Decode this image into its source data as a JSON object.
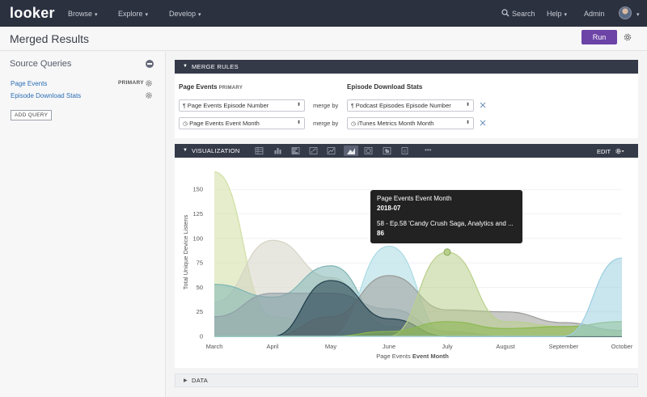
{
  "nav": {
    "logo": "looker",
    "items": [
      "Browse",
      "Explore",
      "Develop"
    ],
    "search": "Search",
    "help": "Help",
    "admin": "Admin"
  },
  "page": {
    "title": "Merged Results",
    "run_label": "Run"
  },
  "sidebar": {
    "title": "Source Queries",
    "queries": [
      {
        "label": "Page Events",
        "badge": "PRIMARY"
      },
      {
        "label": "Episode Download Stats",
        "badge": ""
      }
    ],
    "add_query": "ADD QUERY"
  },
  "merge_rules": {
    "header": "MERGE RULES",
    "left_title": "Page Events",
    "left_badge": "PRIMARY",
    "right_title": "Episode Download Stats",
    "merge_by": "merge by",
    "rows": [
      {
        "left": "Page Events Episode Number",
        "left_icon": "¶",
        "right": "Podcast Episodes Episode Number",
        "right_icon": "¶"
      },
      {
        "left": "Page Events Event Month",
        "left_icon": "◷",
        "right": "iTunes Metrics Month Month",
        "right_icon": "◷"
      }
    ]
  },
  "visualization": {
    "header": "VISUALIZATION",
    "edit": "EDIT",
    "more": "•••",
    "tools": [
      "table-icon",
      "column-chart-icon",
      "bar-chart-icon",
      "scatter-chart-icon",
      "line-chart-icon",
      "area-chart-icon",
      "pie-chart-icon",
      "map-icon",
      "single-value-icon"
    ]
  },
  "tooltip": {
    "title": "Page Events Event Month",
    "date": "2018-07",
    "series": "58 - Ep.58 'Candy Crush Saga, Analytics and ...",
    "value": "86"
  },
  "data_section": {
    "label": "DATA"
  },
  "chart_data": {
    "type": "area",
    "ylabel": "Total Unique Device Listens",
    "xlabel_prefix": "Page Events ",
    "xlabel_bold": "Event Month",
    "categories": [
      "March",
      "April",
      "May",
      "June",
      "July",
      "August",
      "September",
      "October"
    ],
    "ylim": [
      0,
      170
    ],
    "yticks": [
      0,
      25,
      50,
      75,
      100,
      125,
      150
    ],
    "series": [
      {
        "color": "#cfdfa3",
        "values": [
          168,
          20,
          5,
          0,
          0,
          0,
          0,
          0
        ]
      },
      {
        "color": "#d6d3c4",
        "values": [
          35,
          98,
          60,
          0,
          0,
          0,
          0,
          0
        ]
      },
      {
        "color": "#7fb6b5",
        "values": [
          53,
          40,
          72,
          10,
          0,
          0,
          0,
          0
        ]
      },
      {
        "color": "#8fa0a8",
        "values": [
          20,
          44,
          44,
          28,
          5,
          0,
          0,
          0
        ]
      },
      {
        "color": "#a9dbe3",
        "values": [
          0,
          0,
          0,
          92,
          0,
          0,
          0,
          0
        ]
      },
      {
        "color": "#9a9c98",
        "values": [
          0,
          0,
          20,
          62,
          27,
          25,
          14,
          6
        ]
      },
      {
        "color": "#1f3d4b",
        "values": [
          0,
          0,
          57,
          18,
          0,
          0,
          0,
          0
        ]
      },
      {
        "color": "#b9cf8c",
        "values": [
          0,
          0,
          0,
          0,
          86,
          15,
          10,
          5
        ]
      },
      {
        "color": "#8ab84e",
        "values": [
          0,
          0,
          0,
          5,
          15,
          8,
          10,
          15
        ]
      },
      {
        "color": "#9ccfe0",
        "values": [
          0,
          0,
          0,
          0,
          0,
          0,
          0,
          80
        ]
      }
    ],
    "highlight": {
      "series": 7,
      "index": 4
    }
  }
}
